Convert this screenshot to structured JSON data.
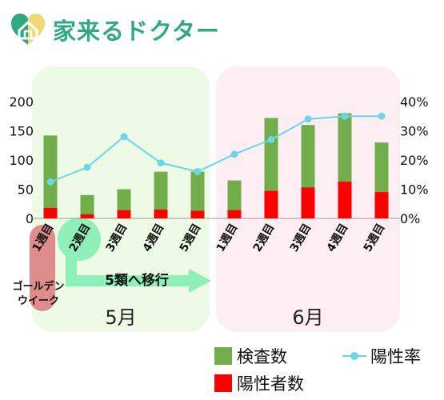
{
  "brand": {
    "name": "家来るドクター",
    "logo_colors": {
      "left": "#2fa886",
      "right": "#f0d878"
    }
  },
  "chart_data": {
    "type": "bar",
    "categories": [
      "1週目",
      "2週目",
      "3週目",
      "4週目",
      "5週目",
      "1週目",
      "2週目",
      "3週目",
      "4週目",
      "5週目"
    ],
    "month_groups": [
      {
        "label": "5月",
        "range": [
          0,
          4
        ],
        "color": "#edfbe6"
      },
      {
        "label": "6月",
        "range": [
          5,
          9
        ],
        "color": "#fdeef4"
      }
    ],
    "series": [
      {
        "name": "検査数",
        "type": "bar",
        "color": "#72ad4b",
        "values": [
          142,
          40,
          50,
          80,
          80,
          65,
          172,
          160,
          180,
          130
        ]
      },
      {
        "name": "陽性者数",
        "type": "bar",
        "color": "#ff0000",
        "values": [
          18,
          7,
          14,
          15,
          13,
          14,
          47,
          53,
          63,
          45
        ]
      },
      {
        "name": "陽性率",
        "type": "line",
        "axis": "right",
        "color": "#6ad6e6",
        "values": [
          12.5,
          17.5,
          28,
          19,
          16,
          22,
          27,
          34,
          35,
          35
        ]
      }
    ],
    "y_left": {
      "ticks": [
        0,
        50,
        100,
        150,
        200
      ],
      "ylim": [
        0,
        200
      ]
    },
    "y_right": {
      "ticks": [
        "0%",
        "10%",
        "20%",
        "30%",
        "40%"
      ],
      "ylim": [
        0,
        40
      ]
    },
    "annotations": {
      "golden_week": "ゴールデン\nウイーク",
      "transition": "5類へ移行"
    },
    "legend": [
      {
        "label": "検査数",
        "shape": "square",
        "color": "#72ad4b"
      },
      {
        "label": "陽性率",
        "shape": "line-dot",
        "color": "#6ad6e6"
      },
      {
        "label": "陽性者数",
        "shape": "square",
        "color": "#ff0000"
      }
    ]
  }
}
